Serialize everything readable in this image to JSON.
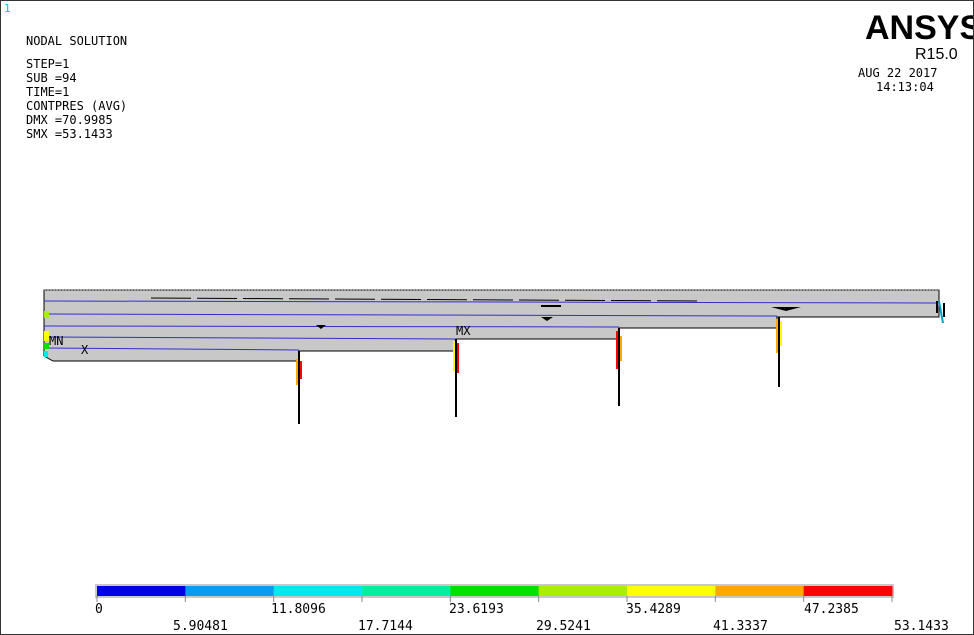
{
  "window_number": "1",
  "header": {
    "brand": "ANSYS",
    "release": "R15.0",
    "date": "AUG 22 2017",
    "time": "14:13:04"
  },
  "result_info": {
    "title": "NODAL SOLUTION",
    "step": "STEP=1",
    "sub": "SUB =94",
    "time": "TIME=1",
    "quantity": "CONTPRES (AVG)",
    "dmx": "DMX =70.9985",
    "smx": "SMX =53.1433"
  },
  "markers": {
    "min": "MN",
    "max": "MX",
    "axis": "X"
  },
  "legend": {
    "colors": [
      "#0000e8",
      "#0a9aee",
      "#00e8f0",
      "#00f0a0",
      "#00e000",
      "#a8f000",
      "#ffff00",
      "#ffa800",
      "#ff0000"
    ],
    "top_labels": [
      "0",
      "11.8096",
      "23.6193",
      "35.4289",
      "47.2385"
    ],
    "bottom_labels": [
      "5.90481",
      "17.7144",
      "29.5241",
      "41.3337",
      "53.1433"
    ],
    "min_value": 0,
    "max_value": 53.1433
  }
}
